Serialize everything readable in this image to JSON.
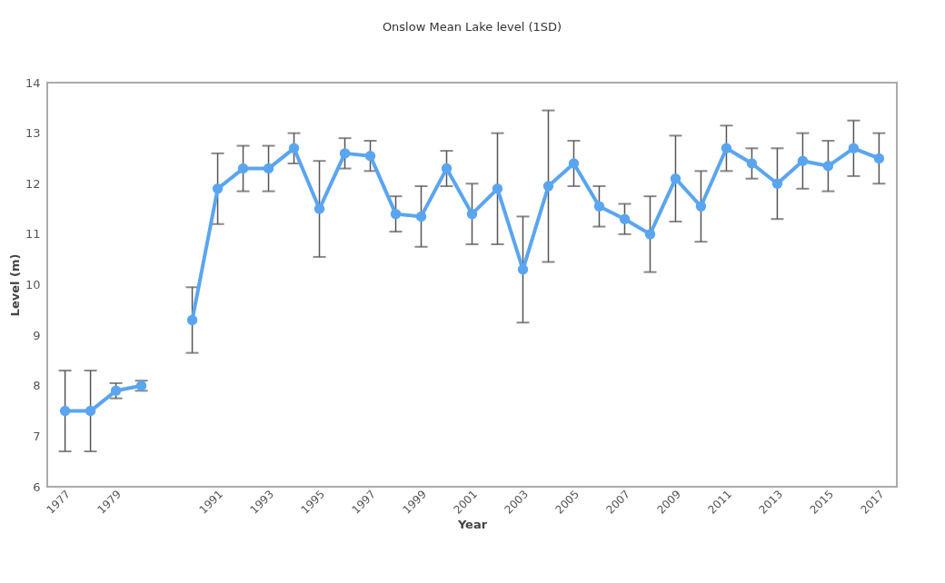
{
  "chart_data": {
    "type": "line",
    "title": "Onslow Mean Lake level (1SD)",
    "xlabel": "Year",
    "ylabel": "Level (m)",
    "categories": [
      "1977",
      null,
      "1979",
      null,
      null,
      null,
      "1991",
      null,
      "1993",
      null,
      "1995",
      null,
      "1997",
      null,
      "1999",
      null,
      "2001",
      null,
      "2003",
      null,
      "2005",
      null,
      "2007",
      null,
      "2009",
      null,
      "2011",
      null,
      "2013",
      null,
      "2015",
      null,
      "2017"
    ],
    "series": [
      {
        "color": "#5aa5f0",
        "values": [
          7.5,
          7.5,
          7.9,
          8.0,
          null,
          9.3,
          11.9,
          12.3,
          12.3,
          12.7,
          11.5,
          12.6,
          12.55,
          11.4,
          11.35,
          12.3,
          11.4,
          11.9,
          10.3,
          11.95,
          12.4,
          11.55,
          11.3,
          11.0,
          12.1,
          11.55,
          12.7,
          12.4,
          12.0,
          12.45,
          12.35,
          12.7,
          12.5
        ],
        "errors": [
          0.8,
          0.8,
          0.15,
          0.1,
          null,
          0.65,
          0.7,
          0.45,
          0.45,
          0.3,
          0.95,
          0.3,
          0.3,
          0.35,
          0.6,
          0.35,
          0.6,
          1.1,
          1.05,
          1.5,
          0.45,
          0.4,
          0.3,
          0.75,
          0.85,
          0.7,
          0.45,
          0.3,
          0.7,
          0.55,
          0.5,
          0.55,
          0.5
        ]
      }
    ],
    "ylim": [
      6,
      14
    ],
    "yticks": [
      6,
      7,
      8,
      9,
      10,
      11,
      12,
      13,
      14
    ],
    "grid": false,
    "marker": "circle",
    "line_style": "solid"
  }
}
